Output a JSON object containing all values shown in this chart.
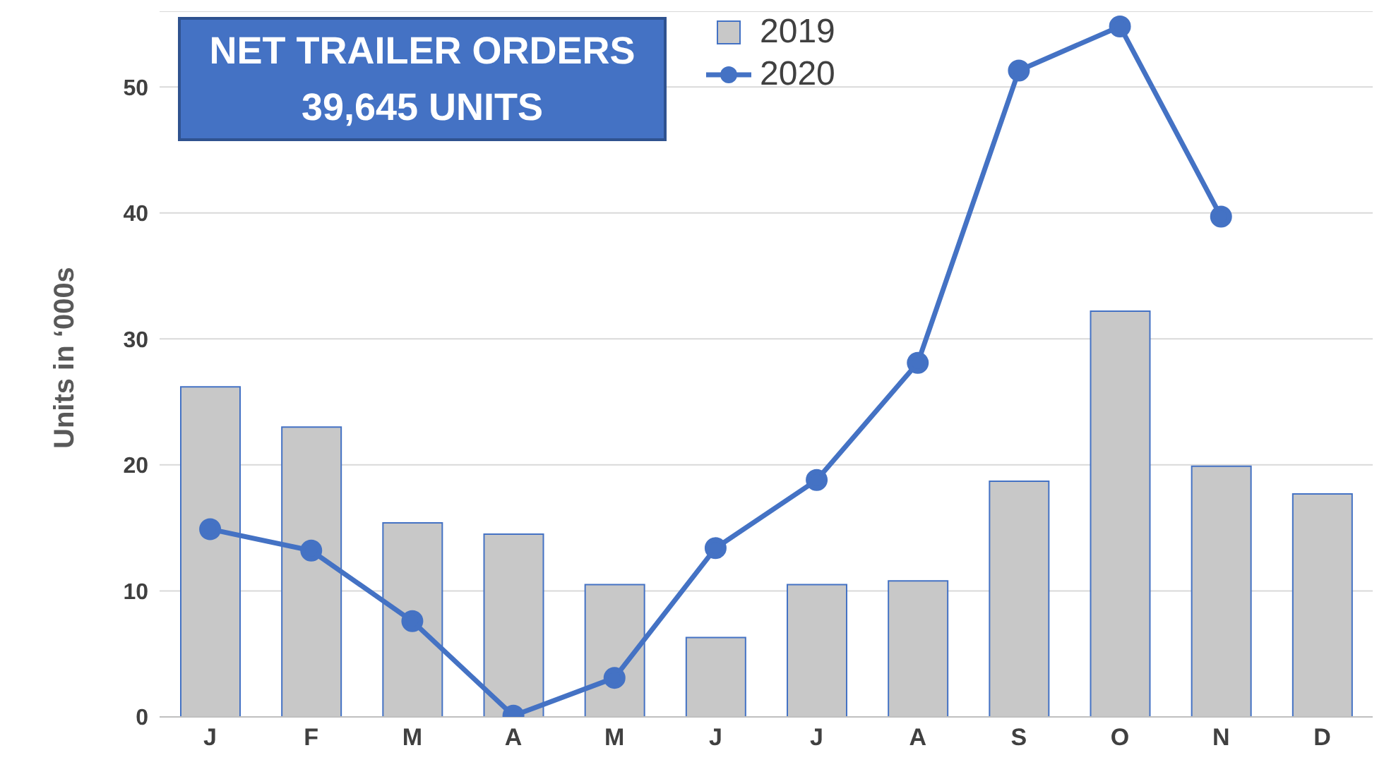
{
  "chart_data": {
    "type": "bar",
    "title": "NET TRAILER ORDERS",
    "subtitle": "39,645 UNITS",
    "ylabel": "Units in ‘000s",
    "categories": [
      "J",
      "F",
      "M",
      "A",
      "M",
      "J",
      "J",
      "A",
      "S",
      "O",
      "N",
      "D"
    ],
    "series": [
      {
        "name": "2019",
        "color": "#c8c8c8",
        "values": [
          26.2,
          23.0,
          15.4,
          14.5,
          10.5,
          6.3,
          10.5,
          10.8,
          18.7,
          32.2,
          19.9,
          17.7
        ]
      },
      {
        "name": "2020",
        "type": "line",
        "color": "#4472c4",
        "values": [
          14.9,
          13.2,
          7.6,
          0.1,
          3.1,
          13.4,
          18.8,
          28.1,
          51.3,
          54.8,
          39.7,
          null
        ]
      }
    ],
    "ylim": [
      0,
      56
    ],
    "yticks": [
      0,
      10,
      20,
      30,
      40,
      50
    ],
    "grid": "y",
    "legend": "top",
    "marker": "circle",
    "line_style": "solid"
  }
}
